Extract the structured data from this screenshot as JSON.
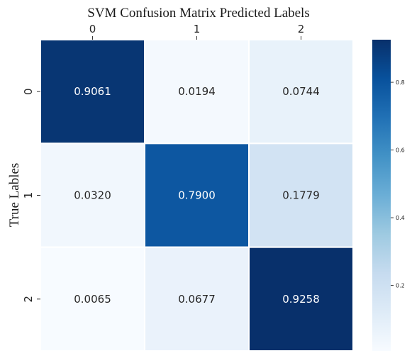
{
  "chart_data": {
    "type": "heatmap",
    "title": "SVM Confusion Matrix Predicted Labels",
    "xlabel": "",
    "ylabel": "True Lables",
    "x_categories": [
      "0",
      "1",
      "2"
    ],
    "y_categories": [
      "0",
      "1",
      "2"
    ],
    "x_axis_position": "top",
    "values": [
      [
        0.9061,
        0.0194,
        0.0744
      ],
      [
        0.032,
        0.79,
        0.1779
      ],
      [
        0.0065,
        0.0677,
        0.9258
      ]
    ],
    "cell_labels": [
      [
        "0.9061",
        "0.0194",
        "0.0744"
      ],
      [
        "0.0320",
        "0.7900",
        "0.1779"
      ],
      [
        "0.0065",
        "0.0677",
        "0.9258"
      ]
    ],
    "colormap": "Blues",
    "color_range": [
      0.0065,
      0.9258
    ],
    "colorbar_ticks": [
      0.2,
      0.4,
      0.6,
      0.8
    ],
    "colorbar_tick_labels": [
      "0.2",
      "0.4",
      "0.6",
      "0.8"
    ],
    "grid": false,
    "legend": "colorbar-right"
  }
}
